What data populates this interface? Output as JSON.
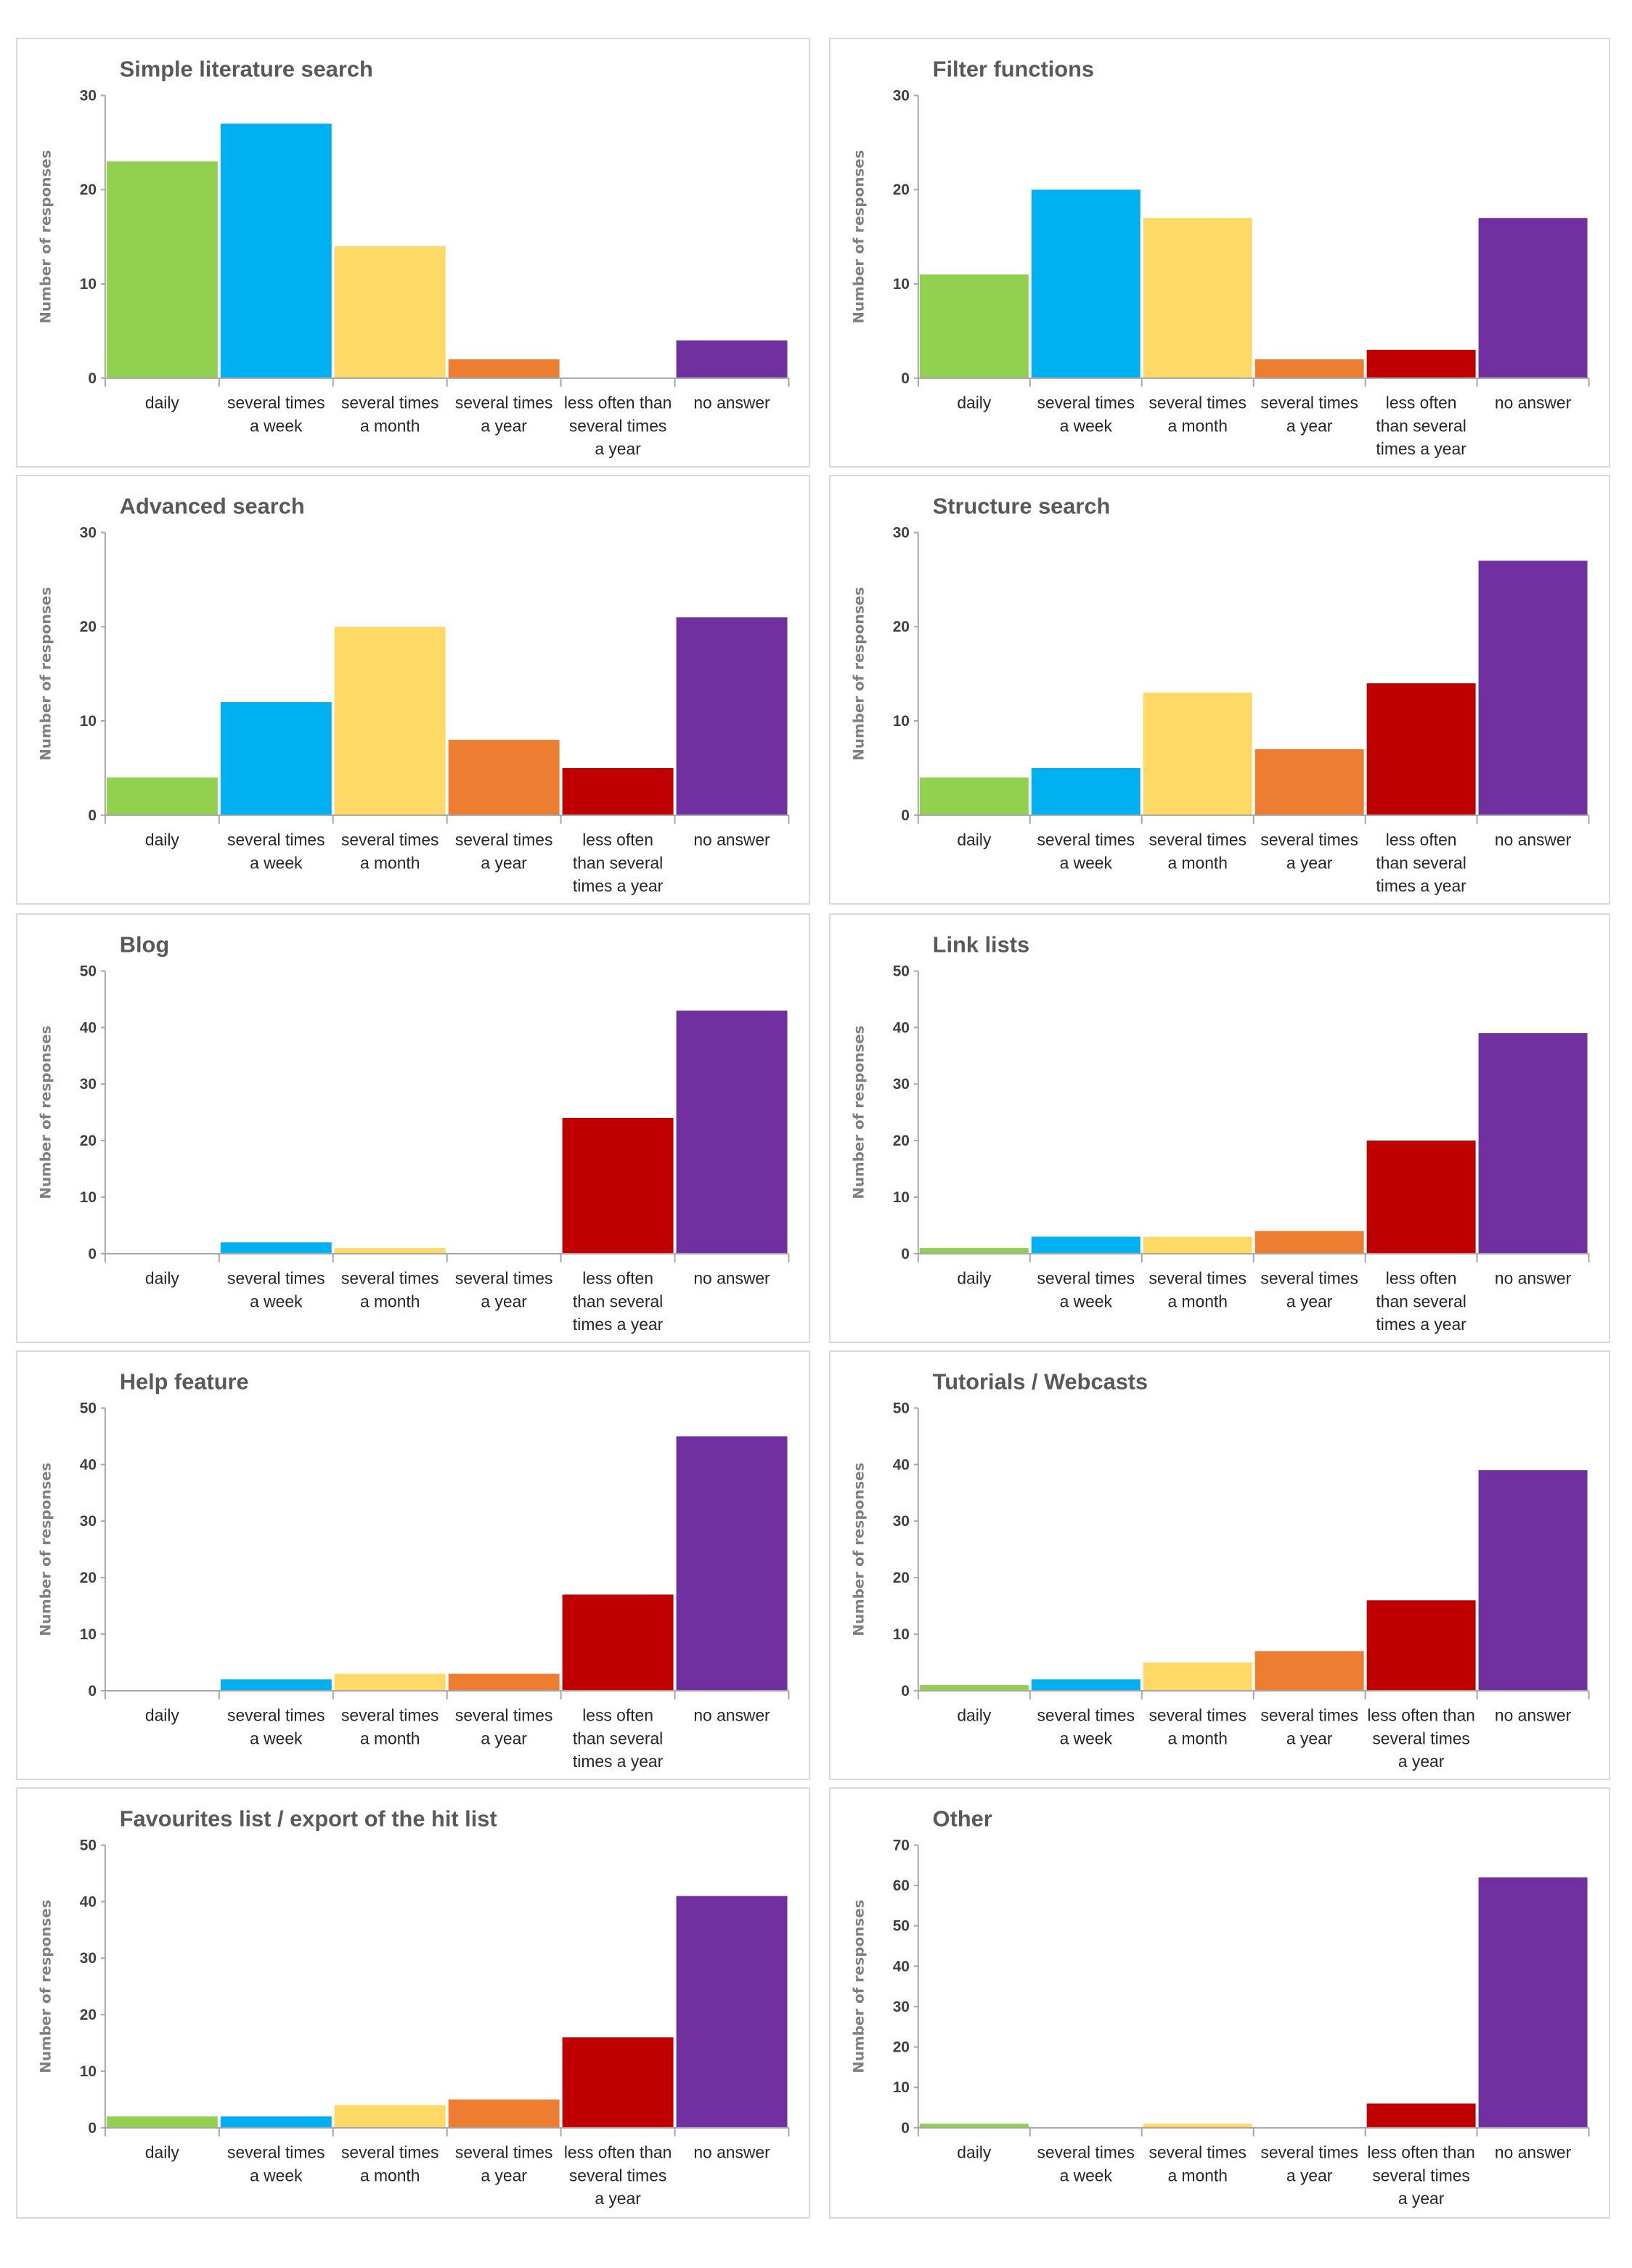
{
  "chart_data": [
    {
      "type": "bar",
      "title": "Simple literature search",
      "ylabel": "Number of responses",
      "xlabel": "",
      "ylim": [
        0,
        30
      ],
      "yticks": [
        0,
        10,
        20,
        30
      ],
      "grid": false,
      "categories": [
        "daily",
        "several times a week",
        "several times a month",
        "several times a year",
        "less often than several times a year",
        "no answer"
      ],
      "category_lines": [
        [
          "daily"
        ],
        [
          "several times",
          "a week"
        ],
        [
          "several times",
          "a month"
        ],
        [
          "several times",
          "a year"
        ],
        [
          "less often than",
          "several times",
          "a year"
        ],
        [
          "no answer"
        ]
      ],
      "values": [
        23,
        27,
        14,
        2,
        0,
        4
      ]
    },
    {
      "type": "bar",
      "title": "Filter functions",
      "ylabel": "Number of responses",
      "xlabel": "",
      "ylim": [
        0,
        30
      ],
      "yticks": [
        0,
        10,
        20,
        30
      ],
      "grid": false,
      "categories": [
        "daily",
        "several times a week",
        "several times a month",
        "several times a year",
        "less often than several times a year",
        "no answer"
      ],
      "category_lines": [
        [
          "daily"
        ],
        [
          "several times",
          "a week"
        ],
        [
          "several times",
          "a month"
        ],
        [
          "several times",
          "a year"
        ],
        [
          "less often",
          "than several",
          "times a year"
        ],
        [
          "no answer"
        ]
      ],
      "values": [
        11,
        20,
        17,
        2,
        3,
        17
      ]
    },
    {
      "type": "bar",
      "title": "Advanced search",
      "ylabel": "Number of responses",
      "xlabel": "",
      "ylim": [
        0,
        30
      ],
      "yticks": [
        0,
        10,
        20,
        30
      ],
      "grid": false,
      "categories": [
        "daily",
        "several times a week",
        "several times a month",
        "several times a year",
        "less often than several times a year",
        "no answer"
      ],
      "category_lines": [
        [
          "daily"
        ],
        [
          "several times",
          "a week"
        ],
        [
          "several times",
          "a month"
        ],
        [
          "several times",
          "a year"
        ],
        [
          "less often",
          "than several",
          "times a year"
        ],
        [
          "no answer"
        ]
      ],
      "values": [
        4,
        12,
        20,
        8,
        5,
        21
      ]
    },
    {
      "type": "bar",
      "title": "Structure search",
      "ylabel": "Number of responses",
      "xlabel": "",
      "ylim": [
        0,
        30
      ],
      "yticks": [
        0,
        10,
        20,
        30
      ],
      "grid": false,
      "categories": [
        "daily",
        "several times a week",
        "several times a month",
        "several times a year",
        "less often than several times a year",
        "no answer"
      ],
      "category_lines": [
        [
          "daily"
        ],
        [
          "several times",
          "a week"
        ],
        [
          "several times",
          "a month"
        ],
        [
          "several times",
          "a year"
        ],
        [
          "less often",
          "than several",
          "times a year"
        ],
        [
          "no answer"
        ]
      ],
      "values": [
        4,
        5,
        13,
        7,
        14,
        27
      ]
    },
    {
      "type": "bar",
      "title": "Blog",
      "ylabel": "Number of responses",
      "xlabel": "",
      "ylim": [
        0,
        50
      ],
      "yticks": [
        0,
        10,
        20,
        30,
        40,
        50
      ],
      "grid": false,
      "categories": [
        "daily",
        "several times a week",
        "several times a month",
        "several times a year",
        "less often than several times a year",
        "no answer"
      ],
      "category_lines": [
        [
          "daily"
        ],
        [
          "several times",
          "a week"
        ],
        [
          "several times",
          "a month"
        ],
        [
          "several times",
          "a year"
        ],
        [
          "less often",
          "than several",
          "times a year"
        ],
        [
          "no answer"
        ]
      ],
      "values": [
        0,
        2,
        1,
        0,
        24,
        43
      ]
    },
    {
      "type": "bar",
      "title": "Link lists",
      "ylabel": "Number of responses",
      "xlabel": "",
      "ylim": [
        0,
        50
      ],
      "yticks": [
        0,
        10,
        20,
        30,
        40,
        50
      ],
      "grid": false,
      "categories": [
        "daily",
        "several times a week",
        "several times a month",
        "several times a year",
        "less often than several times a year",
        "no answer"
      ],
      "category_lines": [
        [
          "daily"
        ],
        [
          "several times",
          "a week"
        ],
        [
          "several times",
          "a month"
        ],
        [
          "several times",
          "a year"
        ],
        [
          "less often",
          "than several",
          "times a year"
        ],
        [
          "no answer"
        ]
      ],
      "values": [
        1,
        3,
        3,
        4,
        20,
        39
      ]
    },
    {
      "type": "bar",
      "title": "Help feature",
      "ylabel": "Number of responses",
      "xlabel": "",
      "ylim": [
        0,
        50
      ],
      "yticks": [
        0,
        10,
        20,
        30,
        40,
        50
      ],
      "grid": false,
      "categories": [
        "daily",
        "several times a week",
        "several times a month",
        "several times a year",
        "less often than several times a year",
        "no answer"
      ],
      "category_lines": [
        [
          "daily"
        ],
        [
          "several times",
          "a week"
        ],
        [
          "several times",
          "a month"
        ],
        [
          "several times",
          "a year"
        ],
        [
          "less often",
          "than several",
          "times a year"
        ],
        [
          "no answer"
        ]
      ],
      "values": [
        0,
        2,
        3,
        3,
        17,
        45
      ]
    },
    {
      "type": "bar",
      "title": "Tutorials / Webcasts",
      "ylabel": "Number of responses",
      "xlabel": "",
      "ylim": [
        0,
        50
      ],
      "yticks": [
        0,
        10,
        20,
        30,
        40,
        50
      ],
      "grid": false,
      "categories": [
        "daily",
        "several times a week",
        "several times a month",
        "several times a year",
        "less often than several times a year",
        "no answer"
      ],
      "category_lines": [
        [
          "daily"
        ],
        [
          "several times",
          "a week"
        ],
        [
          "several times",
          "a month"
        ],
        [
          "several times",
          "a year"
        ],
        [
          "less often than",
          "several times",
          "a year"
        ],
        [
          "no answer"
        ]
      ],
      "values": [
        1,
        2,
        5,
        7,
        16,
        39
      ]
    },
    {
      "type": "bar",
      "title": "Favourites list / export of the hit list",
      "ylabel": "Number of responses",
      "xlabel": "",
      "ylim": [
        0,
        50
      ],
      "yticks": [
        0,
        10,
        20,
        30,
        40,
        50
      ],
      "grid": false,
      "categories": [
        "daily",
        "several times a week",
        "several times a month",
        "several times a year",
        "less often than several times a year",
        "no answer"
      ],
      "category_lines": [
        [
          "daily"
        ],
        [
          "several times",
          "a week"
        ],
        [
          "several times",
          "a month"
        ],
        [
          "several times",
          "a year"
        ],
        [
          "less often than",
          "several times",
          "a year"
        ],
        [
          "no answer"
        ]
      ],
      "values": [
        2,
        2,
        4,
        5,
        16,
        41
      ]
    },
    {
      "type": "bar",
      "title": "Other",
      "ylabel": "Number of responses",
      "xlabel": "",
      "ylim": [
        0,
        70
      ],
      "yticks": [
        0,
        10,
        20,
        30,
        40,
        50,
        60,
        70
      ],
      "grid": false,
      "categories": [
        "daily",
        "several times a week",
        "several times a month",
        "several times a year",
        "less often than several times a year",
        "no answer"
      ],
      "category_lines": [
        [
          "daily"
        ],
        [
          "several times",
          "a week"
        ],
        [
          "several times",
          "a month"
        ],
        [
          "several times",
          "a year"
        ],
        [
          "less often than",
          "several times",
          "a year"
        ],
        [
          "no answer"
        ]
      ],
      "values": [
        1,
        0,
        1,
        0,
        6,
        62
      ]
    }
  ],
  "colors": {
    "bars": [
      "#92d050",
      "#00b0f0",
      "#ffd966",
      "#ed7d31",
      "#c00000",
      "#7030a0"
    ],
    "title": "#595959",
    "axis": "#a6a6a6",
    "panel_border": "#d9d9d9"
  }
}
